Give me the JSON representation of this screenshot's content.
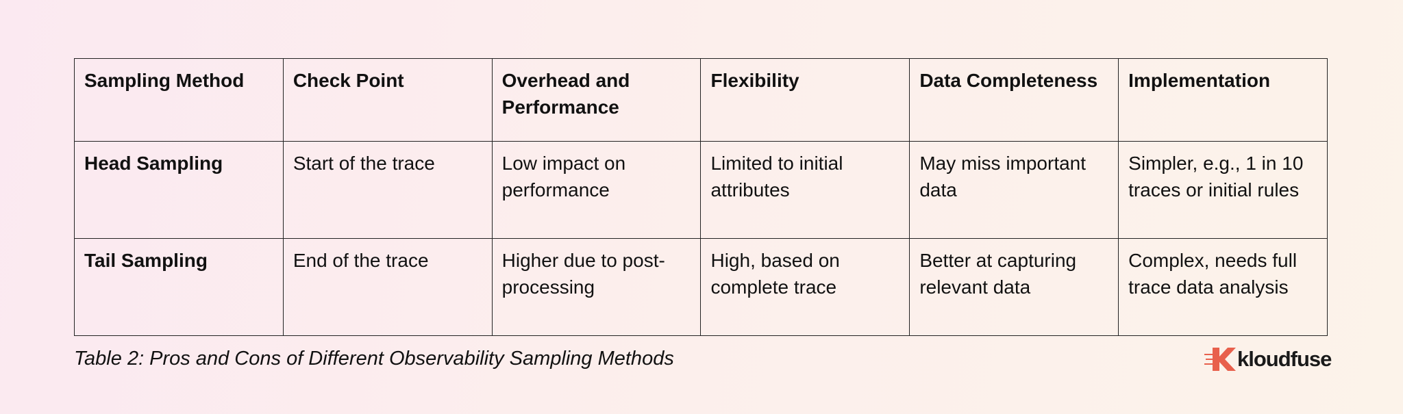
{
  "table": {
    "header": [
      "Sampling Method",
      "Check Point",
      "Overhead and Performance",
      "Flexibility",
      "Data Completeness",
      "Implementation"
    ],
    "rows": [
      [
        "Head Sampling",
        "Start of the trace",
        "Low impact on performance",
        "Limited to initial attributes",
        "May miss important data",
        "Simpler, e.g., 1 in 10 traces or initial rules"
      ],
      [
        "Tail Sampling",
        "End of the trace",
        "Higher due to post-processing",
        "High, based on complete trace",
        "Better at capturing relevant data",
        "Complex, needs full trace data analysis"
      ]
    ]
  },
  "caption": "Table 2: Pros and Cons of Different Observability Sampling Methods",
  "logo": {
    "text": "kloudfuse"
  }
}
